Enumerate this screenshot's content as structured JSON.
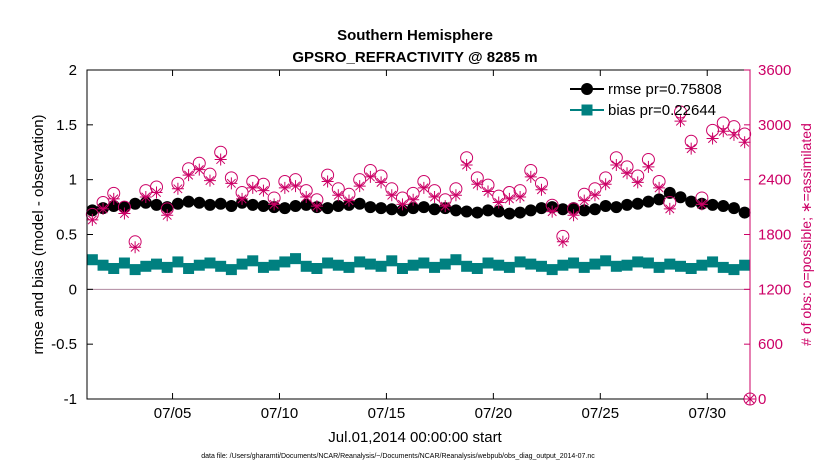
{
  "chart_data": {
    "type": "scatter",
    "title": "Southern Hemisphere",
    "subtitle": "GPSRO_REFRACTIVITY @ 8285 m",
    "xlabel": "Jul.01,2014 00:00:00 start",
    "ylabel": "rmse and bias (model - observation)",
    "y2label": "# of obs: o=possible; ∗=assimilated",
    "xlim": [
      1,
      32
    ],
    "ylim": [
      -1,
      2
    ],
    "y2lim": [
      0,
      3600
    ],
    "x_ticks": [
      5,
      10,
      15,
      20,
      25,
      30
    ],
    "x_tick_labels": [
      "07/05",
      "07/10",
      "07/15",
      "07/20",
      "07/25",
      "07/30"
    ],
    "y_ticks": [
      -1,
      -0.5,
      0,
      0.5,
      1,
      1.5,
      2
    ],
    "y_tick_labels": [
      "-1",
      "-0.5",
      "0",
      "0.5",
      "1",
      "1.5",
      "2"
    ],
    "y2_ticks": [
      0,
      600,
      1200,
      1800,
      2400,
      3000,
      3600
    ],
    "y2_tick_labels": [
      "0",
      "600",
      "1200",
      "1800",
      "2400",
      "3000",
      "3600"
    ],
    "zero_line_value": 0,
    "legend_position": "top-right",
    "series": [
      {
        "name": "rmse pr=0.75808",
        "axis": "left",
        "marker": "filled-circle",
        "color": "#000000",
        "x": [
          1.25,
          1.75,
          2.25,
          2.75,
          3.25,
          3.75,
          4.25,
          4.75,
          5.25,
          5.75,
          6.25,
          6.75,
          7.25,
          7.75,
          8.25,
          8.75,
          9.25,
          9.75,
          10.25,
          10.75,
          11.25,
          11.75,
          12.25,
          12.75,
          13.25,
          13.75,
          14.25,
          14.75,
          15.25,
          15.75,
          16.25,
          16.75,
          17.25,
          17.75,
          18.25,
          18.75,
          19.25,
          19.75,
          20.25,
          20.75,
          21.25,
          21.75,
          22.25,
          22.75,
          23.25,
          23.75,
          24.25,
          24.75,
          25.25,
          25.75,
          26.25,
          26.75,
          27.25,
          27.75,
          28.25,
          28.75,
          29.25,
          29.75,
          30.25,
          30.75,
          31.25,
          31.75
        ],
        "values": [
          0.72,
          0.74,
          0.76,
          0.75,
          0.78,
          0.79,
          0.77,
          0.75,
          0.78,
          0.8,
          0.79,
          0.77,
          0.78,
          0.76,
          0.79,
          0.77,
          0.76,
          0.75,
          0.74,
          0.76,
          0.77,
          0.75,
          0.74,
          0.76,
          0.77,
          0.78,
          0.75,
          0.74,
          0.73,
          0.72,
          0.74,
          0.75,
          0.73,
          0.74,
          0.72,
          0.71,
          0.7,
          0.72,
          0.71,
          0.69,
          0.7,
          0.72,
          0.74,
          0.75,
          0.73,
          0.74,
          0.72,
          0.73,
          0.76,
          0.75,
          0.77,
          0.78,
          0.8,
          0.82,
          0.88,
          0.84,
          0.8,
          0.78,
          0.77,
          0.76,
          0.74,
          0.7
        ]
      },
      {
        "name": "bias pr=0.22644",
        "axis": "left",
        "marker": "filled-square",
        "color": "#008080",
        "x": [
          1.25,
          1.75,
          2.25,
          2.75,
          3.25,
          3.75,
          4.25,
          4.75,
          5.25,
          5.75,
          6.25,
          6.75,
          7.25,
          7.75,
          8.25,
          8.75,
          9.25,
          9.75,
          10.25,
          10.75,
          11.25,
          11.75,
          12.25,
          12.75,
          13.25,
          13.75,
          14.25,
          14.75,
          15.25,
          15.75,
          16.25,
          16.75,
          17.25,
          17.75,
          18.25,
          18.75,
          19.25,
          19.75,
          20.25,
          20.75,
          21.25,
          21.75,
          22.25,
          22.75,
          23.25,
          23.75,
          24.25,
          24.75,
          25.25,
          25.75,
          26.25,
          26.75,
          27.25,
          27.75,
          28.25,
          28.75,
          29.25,
          29.75,
          30.25,
          30.75,
          31.25,
          31.75
        ],
        "values": [
          0.27,
          0.22,
          0.19,
          0.24,
          0.18,
          0.21,
          0.23,
          0.2,
          0.25,
          0.19,
          0.22,
          0.24,
          0.21,
          0.18,
          0.23,
          0.26,
          0.2,
          0.22,
          0.25,
          0.28,
          0.21,
          0.19,
          0.24,
          0.22,
          0.2,
          0.25,
          0.23,
          0.21,
          0.26,
          0.19,
          0.22,
          0.24,
          0.2,
          0.23,
          0.27,
          0.21,
          0.19,
          0.24,
          0.22,
          0.2,
          0.25,
          0.23,
          0.21,
          0.18,
          0.22,
          0.24,
          0.2,
          0.23,
          0.26,
          0.21,
          0.22,
          0.25,
          0.24,
          0.2,
          0.23,
          0.21,
          0.19,
          0.22,
          0.25,
          0.2,
          0.18,
          0.22
        ]
      },
      {
        "name": "possible obs",
        "axis": "right",
        "marker": "open-circle",
        "color": "#cc0066",
        "x": [
          1.25,
          1.75,
          2.25,
          2.75,
          3.25,
          3.75,
          4.25,
          4.75,
          5.25,
          5.75,
          6.25,
          6.75,
          7.25,
          7.75,
          8.25,
          8.75,
          9.25,
          9.75,
          10.25,
          10.75,
          11.25,
          11.75,
          12.25,
          12.75,
          13.25,
          13.75,
          14.25,
          14.75,
          15.25,
          15.75,
          16.25,
          16.75,
          17.25,
          17.75,
          18.25,
          18.75,
          19.25,
          19.75,
          20.25,
          20.75,
          21.25,
          21.75,
          22.25,
          22.75,
          23.25,
          23.75,
          24.25,
          24.75,
          25.25,
          25.75,
          26.25,
          26.75,
          27.25,
          27.75,
          28.25,
          28.75,
          29.25,
          29.75,
          30.25,
          30.75,
          31.25,
          31.75
        ],
        "values": [
          2020,
          2150,
          2250,
          2100,
          1720,
          2280,
          2320,
          2080,
          2360,
          2520,
          2580,
          2460,
          2700,
          2420,
          2260,
          2380,
          2350,
          2200,
          2380,
          2400,
          2280,
          2180,
          2450,
          2300,
          2240,
          2400,
          2500,
          2440,
          2300,
          2200,
          2250,
          2380,
          2280,
          2180,
          2300,
          2640,
          2420,
          2340,
          2220,
          2260,
          2280,
          2500,
          2360,
          2120,
          1780,
          2080,
          2240,
          2300,
          2420,
          2640,
          2540,
          2440,
          2620,
          2380,
          2150,
          3140,
          2820,
          2200,
          2940,
          3020,
          2980,
          2900
        ]
      },
      {
        "name": "assimilated obs",
        "axis": "right",
        "marker": "asterisk",
        "color": "#cc0066",
        "x": [
          1.25,
          1.75,
          2.25,
          2.75,
          3.25,
          3.75,
          4.25,
          4.75,
          5.25,
          5.75,
          6.25,
          6.75,
          7.25,
          7.75,
          8.25,
          8.75,
          9.25,
          9.75,
          10.25,
          10.75,
          11.25,
          11.75,
          12.25,
          12.75,
          13.25,
          13.75,
          14.25,
          14.75,
          15.25,
          15.75,
          16.25,
          16.75,
          17.25,
          17.75,
          18.25,
          18.75,
          19.25,
          19.75,
          20.25,
          20.75,
          21.25,
          21.75,
          22.25,
          22.75,
          23.25,
          23.75,
          24.25,
          24.75,
          25.25,
          25.75,
          26.25,
          26.75,
          27.25,
          27.75,
          28.25,
          28.75,
          29.25,
          29.75,
          30.25,
          30.75,
          31.25,
          31.75
        ],
        "values": [
          1960,
          2080,
          2190,
          2030,
          1660,
          2210,
          2260,
          2010,
          2300,
          2450,
          2510,
          2390,
          2620,
          2360,
          2190,
          2310,
          2280,
          2130,
          2310,
          2330,
          2210,
          2110,
          2380,
          2230,
          2170,
          2330,
          2430,
          2370,
          2230,
          2130,
          2180,
          2310,
          2210,
          2110,
          2230,
          2560,
          2350,
          2270,
          2150,
          2190,
          2210,
          2430,
          2290,
          2050,
          1720,
          2010,
          2170,
          2230,
          2350,
          2560,
          2470,
          2370,
          2540,
          2310,
          2080,
          3040,
          2740,
          2130,
          2850,
          2930,
          2890,
          2810
        ]
      }
    ],
    "footnote": "data file: /Users/gharamti/Documents/NCAR/Reanalysis/~/Documents/NCAR/Reanalysis/webpub/obs_diag_output_2014-07.nc"
  }
}
